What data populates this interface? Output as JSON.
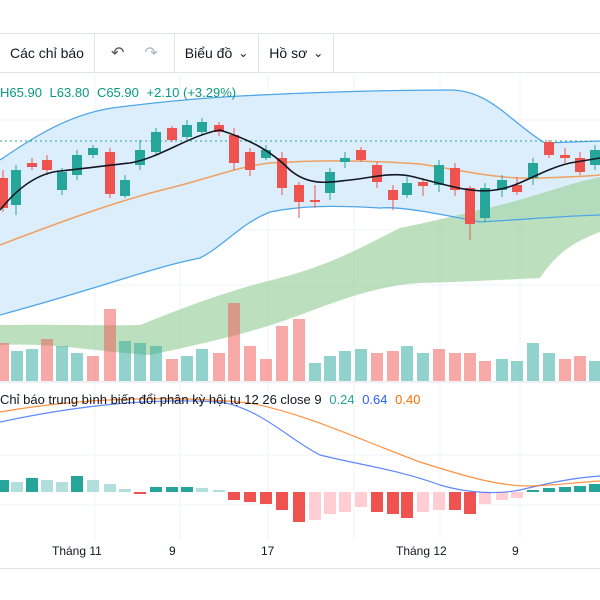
{
  "toolbar": {
    "indicators_label": "Các chỉ báo",
    "undo_icon": "undo-icon",
    "redo_icon": "redo-icon",
    "chart_label": "Biểu đồ",
    "profile_label": "Hồ sơ"
  },
  "ohlc": {
    "high": "H65.90",
    "low": "L63.80",
    "close": "C65.90",
    "change": "+2.10 (+3.29%)",
    "color": "#089981"
  },
  "macd_legend": {
    "title": "Chỉ báo trung bình biến đổi phân kỳ hội tụ 12 26 close 9",
    "v1": "0.24",
    "v2": "0.64",
    "v3": "0.40",
    "c1": "#26a69a",
    "c2": "#2962ff",
    "c3": "#ff6d00"
  },
  "x_axis": {
    "labels": [
      "Tháng 11",
      "9",
      "17",
      "Tháng 12",
      "9"
    ]
  },
  "colors": {
    "up": "#26a69a",
    "down": "#ef5350",
    "band_fill": "#d6ebfb",
    "band_line": "#4da6e8",
    "cloud": "#a5d6a7",
    "ma_orange": "#f0a060",
    "ma_black": "#000000"
  }
}
